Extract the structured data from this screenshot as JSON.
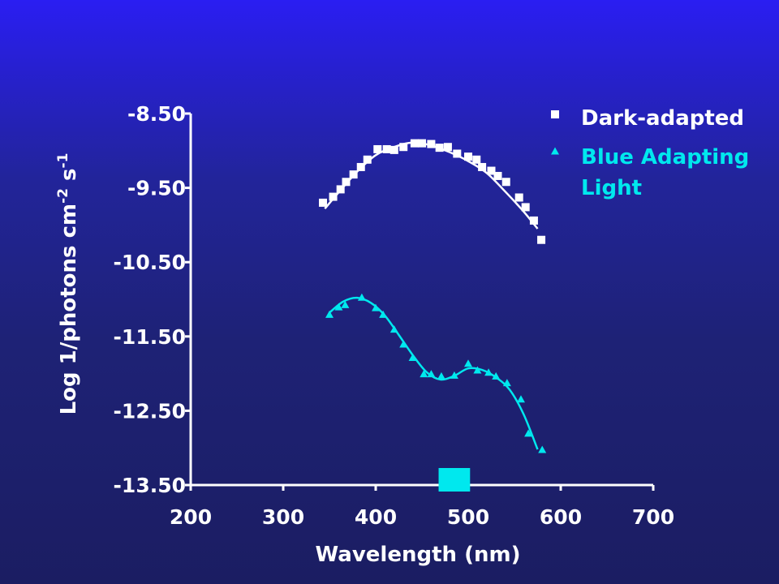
{
  "colors": {
    "axis": "#ffffff",
    "dark_series": "#ffffff",
    "blue_series": "#00e8ee",
    "band_marker": "#00e8ee"
  },
  "chart_data": {
    "type": "scatter",
    "title": "",
    "xlabel": "Wavelength (nm)",
    "ylabel": "Log 1/photons cm-2 s-1",
    "xlim": [
      200,
      700
    ],
    "ylim": [
      -13.5,
      -8.5
    ],
    "x_ticks": [
      200,
      300,
      400,
      500,
      600,
      700
    ],
    "y_ticks": [
      -8.5,
      -9.5,
      -10.5,
      -11.5,
      -12.5,
      -13.5
    ],
    "x_tick_labels": [
      "200",
      "300",
      "400",
      "500",
      "600",
      "700"
    ],
    "y_tick_labels": [
      "-8.50",
      "-9.50",
      "-10.50",
      "-11.50",
      "-12.50",
      "-13.50"
    ],
    "grid": false,
    "legend_position": "top-right",
    "series": [
      {
        "name": "Dark-adapted",
        "marker": "square",
        "color": "#ffffff",
        "x": [
          343,
          354,
          362,
          368,
          376,
          384,
          391,
          402,
          412,
          420,
          430,
          442,
          450,
          460,
          469,
          478,
          488,
          500,
          509,
          515,
          525,
          532,
          541,
          555,
          562,
          571,
          579
        ],
        "y": [
          -9.7,
          -9.62,
          -9.52,
          -9.42,
          -9.32,
          -9.22,
          -9.12,
          -8.98,
          -8.98,
          -8.99,
          -8.95,
          -8.9,
          -8.9,
          -8.91,
          -8.96,
          -8.95,
          -9.04,
          -9.08,
          -9.12,
          -9.22,
          -9.27,
          -9.34,
          -9.42,
          -9.63,
          -9.76,
          -9.94,
          -10.2
        ],
        "fit_x": [
          345,
          360,
          380,
          400,
          420,
          440,
          460,
          480,
          500,
          520,
          540,
          560,
          575
        ],
        "fit_y": [
          -9.78,
          -9.56,
          -9.28,
          -9.06,
          -8.95,
          -8.89,
          -8.93,
          -9.02,
          -9.14,
          -9.3,
          -9.55,
          -9.82,
          -10.05
        ]
      },
      {
        "name": "Blue Adapting Light",
        "marker": "triangle",
        "color": "#00e8ee",
        "x": [
          350,
          360,
          367,
          385,
          400,
          408,
          420,
          430,
          440,
          452,
          460,
          471,
          485,
          500,
          510,
          522,
          530,
          542,
          557,
          565,
          580
        ],
        "y": [
          -11.2,
          -11.1,
          -11.07,
          -10.97,
          -11.11,
          -11.2,
          -11.4,
          -11.6,
          -11.78,
          -12.0,
          -12.0,
          -12.03,
          -12.02,
          -11.86,
          -11.95,
          -11.98,
          -12.03,
          -12.12,
          -12.34,
          -12.8,
          -13.02
        ],
        "fit_x": [
          350,
          365,
          380,
          395,
          410,
          425,
          440,
          455,
          470,
          485,
          500,
          515,
          530,
          545,
          560,
          575
        ],
        "fit_y": [
          -11.18,
          -11.03,
          -10.98,
          -11.05,
          -11.22,
          -11.48,
          -11.75,
          -11.98,
          -12.08,
          -12.03,
          -11.93,
          -11.95,
          -12.05,
          -12.22,
          -12.55,
          -13.02
        ]
      }
    ],
    "band_marker": {
      "x_start": 468,
      "x_end": 502
    }
  }
}
